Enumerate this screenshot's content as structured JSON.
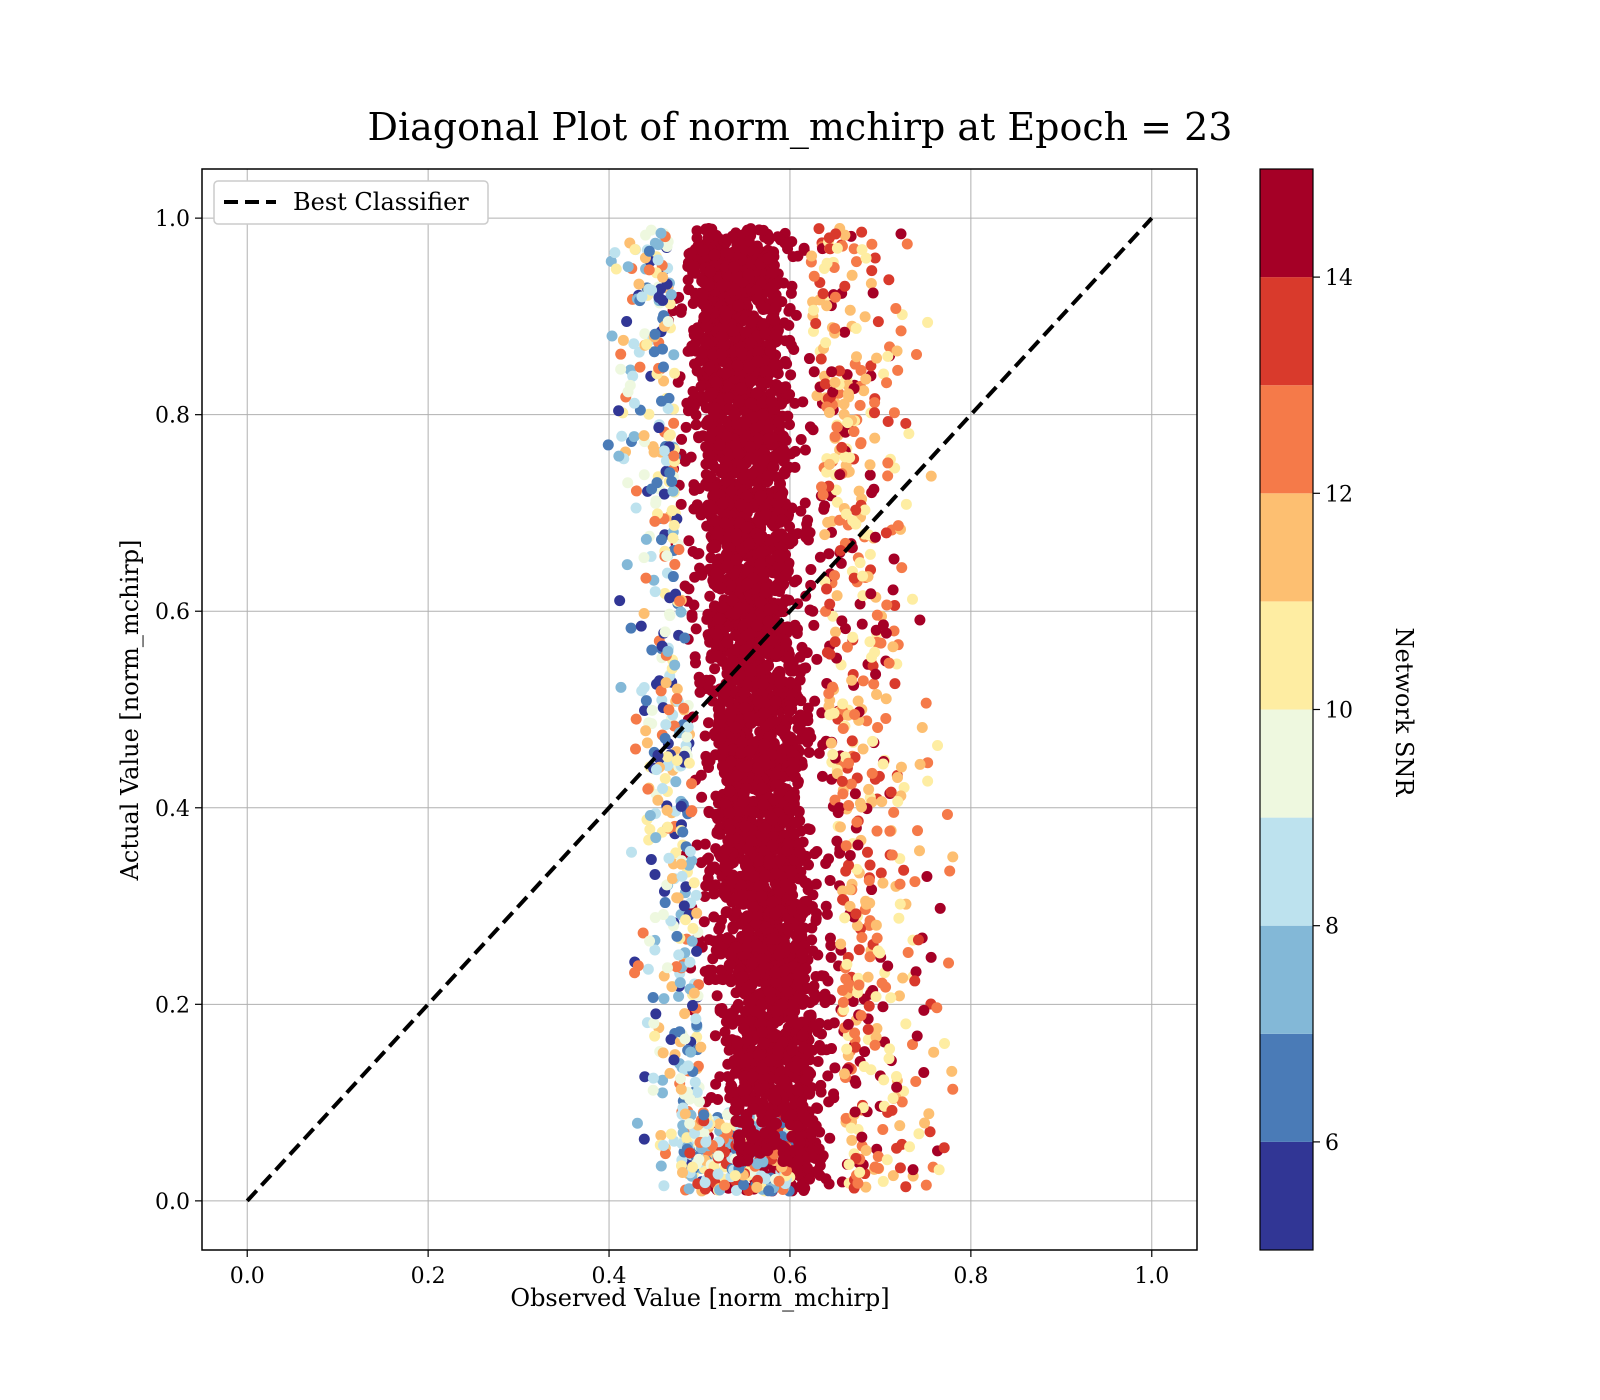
{
  "chart_data": {
    "type": "scatter",
    "title": "Diagonal Plot of norm_mchirp at Epoch = 23",
    "xlabel": "Observed Value [norm_mchirp]",
    "ylabel": "Actual Value [norm_mchirp]",
    "xlim": [
      -0.05,
      1.05
    ],
    "ylim": [
      -0.05,
      1.05
    ],
    "x_ticks": [
      0.0,
      0.2,
      0.4,
      0.6,
      0.8,
      1.0
    ],
    "x_tick_labels": [
      "0.0",
      "0.2",
      "0.4",
      "0.6",
      "0.8",
      "1.0"
    ],
    "y_ticks": [
      0.0,
      0.2,
      0.4,
      0.6,
      0.8,
      1.0
    ],
    "y_tick_labels": [
      "0.0",
      "0.2",
      "0.4",
      "0.6",
      "0.8",
      "1.0"
    ],
    "grid": true,
    "legend": {
      "position": "top-left",
      "entries": [
        "Best Classifier"
      ]
    },
    "reference_line": {
      "name": "Best Classifier",
      "style": "dashed",
      "color": "#000000",
      "x": [
        0.0,
        1.0
      ],
      "y": [
        0.0,
        1.0
      ]
    },
    "point_cloud": {
      "description_x_range": [
        0.39,
        0.78
      ],
      "y_range": [
        0.0,
        1.0
      ],
      "core_x_range": [
        0.48,
        0.68
      ],
      "color_by": "Network SNR"
    },
    "colorbar": {
      "label": "Network SNR",
      "range": [
        5,
        15
      ],
      "ticks": [
        6,
        8,
        10,
        12,
        14
      ],
      "tick_labels": [
        "6",
        "8",
        "10",
        "12",
        "14"
      ],
      "colors": [
        "#313695",
        "#4a7bb7",
        "#83b8d7",
        "#bde2ee",
        "#eef8df",
        "#feeda2",
        "#fdbf71",
        "#f57a49",
        "#d93a2c",
        "#a50026"
      ]
    }
  }
}
